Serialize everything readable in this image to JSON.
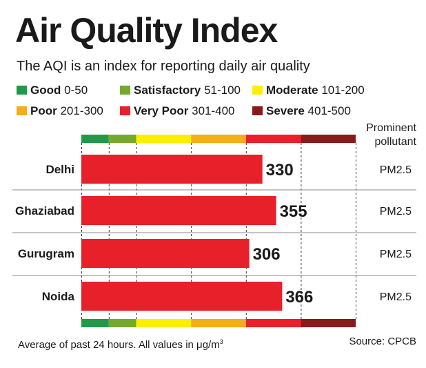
{
  "header": {
    "title": "Air Quality Index",
    "subtitle": "The AQI is an index for reporting daily air quality"
  },
  "legend": [
    {
      "name": "Good",
      "range": "0-50",
      "color": "#1e9a4a"
    },
    {
      "name": "Satisfactory",
      "range": "51-100",
      "color": "#74a92b"
    },
    {
      "name": "Moderate",
      "range": "101-200",
      "color": "#ffee00"
    },
    {
      "name": "Poor",
      "range": "201-300",
      "color": "#f7ac1b"
    },
    {
      "name": "Very Poor",
      "range": "301-400",
      "color": "#e8202a"
    },
    {
      "name": "Severe",
      "range": "401-500",
      "color": "#8b1a1a"
    }
  ],
  "pollutant_header": "Prominent pollutant",
  "footer": {
    "note": "Average of past 24 hours. All values in μg/m",
    "note_sup": "3",
    "source": "Source: CPCB"
  },
  "chart_data": {
    "type": "bar",
    "orientation": "horizontal",
    "categories": [
      "Delhi",
      "Ghaziabad",
      "Gurugram",
      "Noida"
    ],
    "values": [
      330,
      355,
      306,
      366
    ],
    "pollutants": [
      "PM2.5",
      "PM2.5",
      "PM2.5",
      "PM2.5"
    ],
    "xlim": [
      0,
      500
    ],
    "bar_color": "#e8202a",
    "band_boundaries": [
      0,
      50,
      100,
      200,
      300,
      400,
      500
    ],
    "band_colors": [
      "#1e9a4a",
      "#74a92b",
      "#ffee00",
      "#f7ac1b",
      "#e8202a",
      "#8b1a1a"
    ],
    "grid": "dashed vertical lines at band boundaries"
  }
}
